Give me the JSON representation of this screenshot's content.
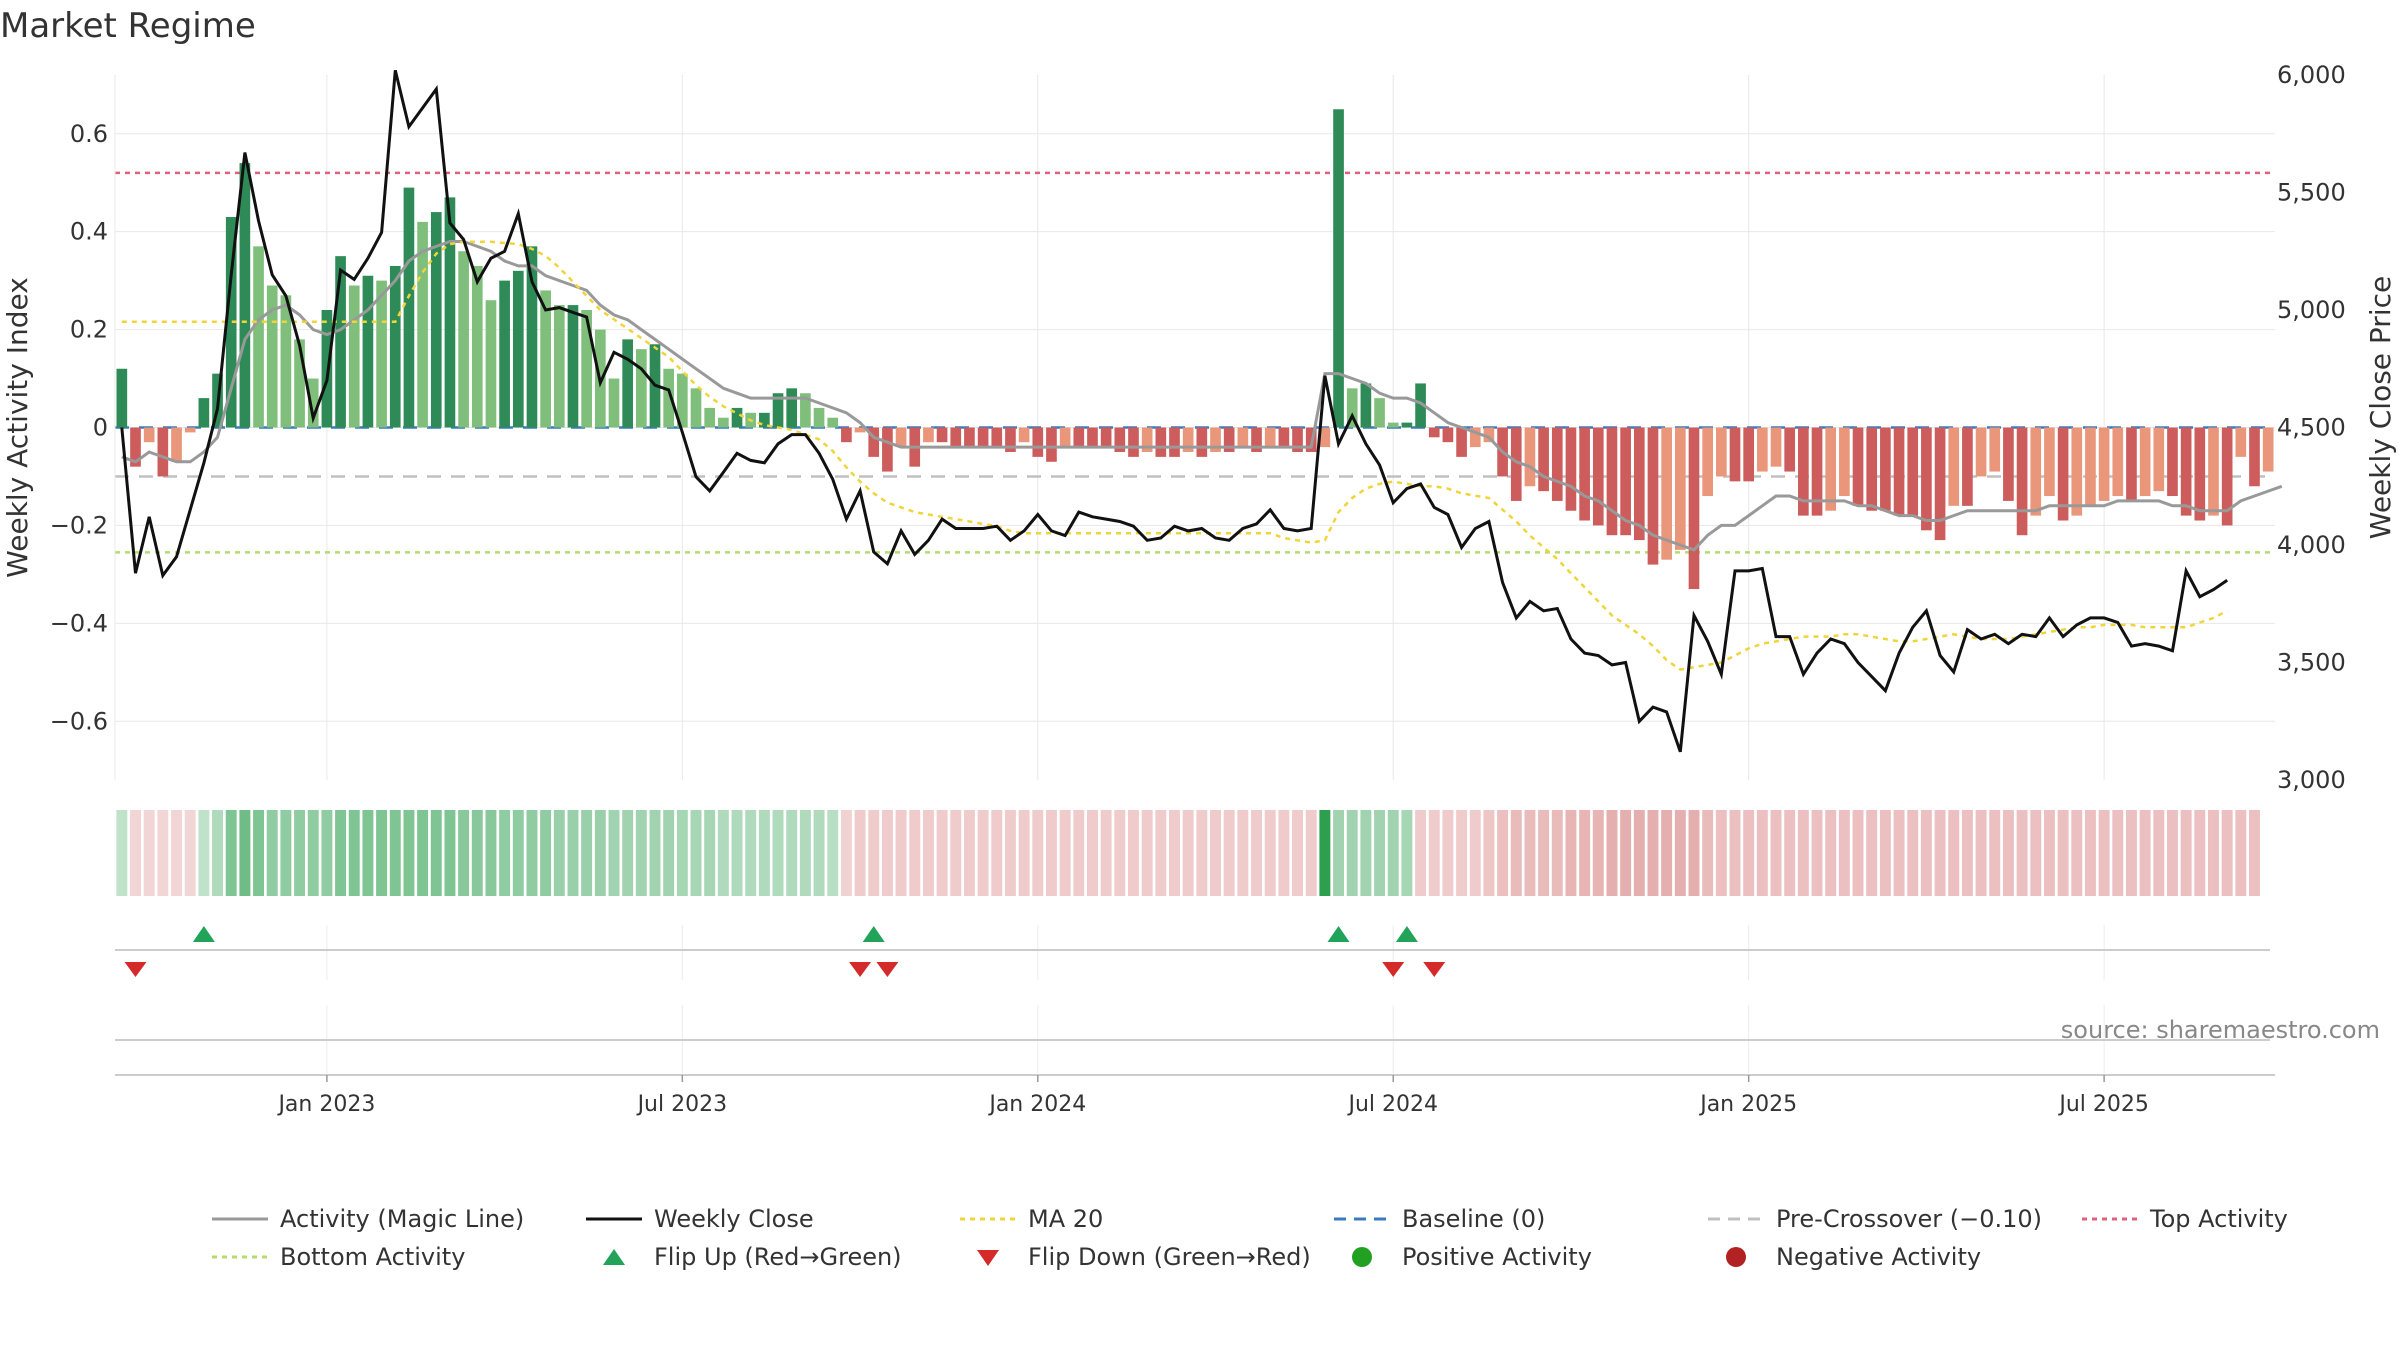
{
  "title": "Market Regime",
  "source": "source: sharemaestro.com",
  "colors": {
    "positive_dark": "#2e8b57",
    "positive_light": "#7fbf7b",
    "negative_dark": "#cd5c5c",
    "negative_light": "#e9967a",
    "magic_line": "#999999",
    "close": "#111111",
    "ma20": "#f0d43a",
    "baseline": "#3a7bbf",
    "pre_crossover": "#c0c0c0",
    "top_activity": "#e0607e",
    "bottom_activity": "#b5dc6e",
    "flip_up": "#22a35a",
    "flip_down": "#d42a2a",
    "positive_dot": "#22a022",
    "negative_dot": "#b22222"
  },
  "chart_data": {
    "type": "bar",
    "x_label": "",
    "y_left": {
      "label": "Weekly Activity Index",
      "range": [
        -0.72,
        0.72
      ],
      "ticks": [
        0.6,
        0.4,
        0.2,
        0,
        -0.2,
        -0.4,
        -0.6
      ],
      "tick_labels": [
        "0.6",
        "0.4",
        "0.2",
        "0",
        "−0.2",
        "−0.4",
        "−0.6"
      ]
    },
    "y_right": {
      "label": "Weekly Close Price",
      "range": [
        3000,
        6000
      ],
      "ticks": [
        6000,
        5500,
        5000,
        4500,
        4000,
        3500,
        3000
      ],
      "tick_labels": [
        "6,000",
        "5,500",
        "5,000",
        "4,500",
        "4,000",
        "3,500",
        "3,000"
      ]
    },
    "x_ticks": [
      {
        "index": 15,
        "label": "Jan 2023"
      },
      {
        "index": 41,
        "label": "Jul 2023"
      },
      {
        "index": 67,
        "label": "Jan 2024"
      },
      {
        "index": 93,
        "label": "Jul 2024"
      },
      {
        "index": 119,
        "label": "Jan 2025"
      },
      {
        "index": 145,
        "label": "Jul 2025"
      }
    ],
    "top_activity_level": 0.52,
    "bottom_activity_level": -0.255,
    "pre_crossover_level": -0.1,
    "baseline_level": 0,
    "activity": [
      0.12,
      -0.08,
      -0.03,
      -0.1,
      -0.07,
      -0.01,
      0.06,
      0.11,
      0.43,
      0.54,
      0.37,
      0.29,
      0.27,
      0.18,
      0.1,
      0.24,
      0.35,
      0.29,
      0.31,
      0.3,
      0.33,
      0.49,
      0.42,
      0.44,
      0.47,
      0.36,
      0.33,
      0.26,
      0.3,
      0.32,
      0.37,
      0.28,
      0.25,
      0.25,
      0.24,
      0.2,
      0.1,
      0.18,
      0.16,
      0.17,
      0.12,
      0.11,
      0.08,
      0.04,
      0.02,
      0.04,
      0.03,
      0.03,
      0.07,
      0.08,
      0.07,
      0.04,
      0.02,
      -0.03,
      -0.01,
      -0.06,
      -0.09,
      -0.04,
      -0.08,
      -0.03,
      -0.03,
      -0.04,
      -0.04,
      -0.04,
      -0.04,
      -0.05,
      -0.03,
      -0.06,
      -0.07,
      -0.04,
      -0.04,
      -0.04,
      -0.04,
      -0.05,
      -0.06,
      -0.05,
      -0.06,
      -0.06,
      -0.05,
      -0.06,
      -0.05,
      -0.05,
      -0.04,
      -0.05,
      -0.04,
      -0.04,
      -0.05,
      -0.05,
      -0.04,
      0.65,
      0.08,
      0.09,
      0.06,
      0.01,
      0.01,
      0.09,
      -0.02,
      -0.03,
      -0.06,
      -0.04,
      -0.03,
      -0.1,
      -0.15,
      -0.12,
      -0.13,
      -0.15,
      -0.17,
      -0.19,
      -0.2,
      -0.22,
      -0.22,
      -0.23,
      -0.28,
      -0.27,
      -0.25,
      -0.33,
      -0.14,
      -0.1,
      -0.11,
      -0.11,
      -0.09,
      -0.08,
      -0.09,
      -0.18,
      -0.18,
      -0.17,
      -0.14,
      -0.16,
      -0.17,
      -0.17,
      -0.18,
      -0.18,
      -0.21,
      -0.23,
      -0.16,
      -0.16,
      -0.1,
      -0.09,
      -0.15,
      -0.22,
      -0.18,
      -0.14,
      -0.19,
      -0.18,
      -0.16,
      -0.15,
      -0.14,
      -0.15,
      -0.14,
      -0.13,
      -0.14,
      -0.18,
      -0.19,
      -0.18,
      -0.2,
      -0.06,
      -0.12,
      -0.09
    ],
    "weekly_close": [
      4500,
      3880,
      4120,
      3870,
      3950,
      4150,
      4350,
      4580,
      5150,
      5670,
      5380,
      5150,
      5060,
      4850,
      4540,
      4700,
      5170,
      5130,
      5220,
      5330,
      6020,
      5780,
      5860,
      5940,
      5370,
      5300,
      5120,
      5220,
      5250,
      5410,
      5120,
      5000,
      5010,
      4990,
      4970,
      4690,
      4820,
      4790,
      4750,
      4680,
      4660,
      4480,
      4290,
      4230,
      4310,
      4390,
      4360,
      4350,
      4430,
      4470,
      4470,
      4390,
      4280,
      4110,
      4230,
      3970,
      3920,
      4060,
      3960,
      4020,
      4110,
      4070,
      4070,
      4070,
      4080,
      4020,
      4060,
      4130,
      4060,
      4040,
      4140,
      4120,
      4110,
      4100,
      4080,
      4020,
      4030,
      4080,
      4060,
      4070,
      4030,
      4020,
      4070,
      4090,
      4150,
      4070,
      4060,
      4070,
      4720,
      4430,
      4550,
      4430,
      4340,
      4180,
      4240,
      4260,
      4160,
      4130,
      3990,
      4070,
      4100,
      3840,
      3690,
      3760,
      3720,
      3730,
      3600,
      3540,
      3530,
      3490,
      3500,
      3250,
      3310,
      3290,
      3120,
      3700,
      3590,
      3450,
      3890,
      3890,
      3900,
      3610,
      3610,
      3450,
      3540,
      3600,
      3580,
      3500,
      3440,
      3380,
      3540,
      3650,
      3720,
      3530,
      3460,
      3640,
      3600,
      3620,
      3580,
      3620,
      3610,
      3690,
      3610,
      3660,
      3690,
      3690,
      3670,
      3570,
      3580,
      3570,
      3550,
      3890,
      3780,
      3810,
      3850
    ],
    "ma20": [
      4950,
      4950,
      4950,
      4950,
      4950,
      4950,
      4950,
      4950,
      4950,
      4950,
      4950,
      4950,
      4950,
      4950,
      4950,
      4950,
      4950,
      4950,
      4950,
      4950,
      4950,
      5060,
      5160,
      5240,
      5280,
      5290,
      5290,
      5290,
      5285,
      5280,
      5260,
      5230,
      5180,
      5120,
      5060,
      5000,
      4960,
      4920,
      4880,
      4840,
      4800,
      4740,
      4680,
      4630,
      4590,
      4560,
      4530,
      4510,
      4500,
      4490,
      4470,
      4450,
      4400,
      4330,
      4270,
      4220,
      4180,
      4160,
      4140,
      4130,
      4120,
      4110,
      4100,
      4090,
      4080,
      4060,
      4050,
      4050,
      4050,
      4050,
      4050,
      4050,
      4050,
      4050,
      4050,
      4050,
      4050,
      4050,
      4050,
      4050,
      4050,
      4050,
      4050,
      4050,
      4050,
      4030,
      4020,
      4010,
      4020,
      4140,
      4200,
      4240,
      4260,
      4270,
      4260,
      4250,
      4250,
      4240,
      4220,
      4210,
      4200,
      4150,
      4100,
      4040,
      3990,
      3940,
      3880,
      3820,
      3760,
      3700,
      3660,
      3620,
      3570,
      3510,
      3470,
      3480,
      3490,
      3500,
      3530,
      3560,
      3580,
      3590,
      3600,
      3610,
      3610,
      3610,
      3620,
      3620,
      3610,
      3600,
      3590,
      3590,
      3600,
      3610,
      3620,
      3610,
      3600,
      3600,
      3600,
      3610,
      3620,
      3630,
      3640,
      3650,
      3650,
      3660,
      3660,
      3660,
      3650,
      3650,
      3650,
      3650,
      3670,
      3690,
      3720
    ],
    "magic_line": [
      -0.06,
      -0.07,
      -0.05,
      -0.06,
      -0.07,
      -0.07,
      -0.05,
      -0.02,
      0.08,
      0.18,
      0.22,
      0.24,
      0.25,
      0.23,
      0.2,
      0.19,
      0.2,
      0.22,
      0.24,
      0.27,
      0.3,
      0.34,
      0.36,
      0.37,
      0.38,
      0.38,
      0.37,
      0.36,
      0.34,
      0.33,
      0.33,
      0.31,
      0.3,
      0.29,
      0.28,
      0.25,
      0.23,
      0.22,
      0.2,
      0.18,
      0.16,
      0.14,
      0.12,
      0.1,
      0.08,
      0.07,
      0.06,
      0.06,
      0.06,
      0.06,
      0.06,
      0.05,
      0.04,
      0.03,
      0.01,
      -0.02,
      -0.03,
      -0.04,
      -0.04,
      -0.04,
      -0.04,
      -0.04,
      -0.04,
      -0.04,
      -0.04,
      -0.04,
      -0.04,
      -0.04,
      -0.04,
      -0.04,
      -0.04,
      -0.04,
      -0.04,
      -0.04,
      -0.04,
      -0.04,
      -0.04,
      -0.04,
      -0.04,
      -0.04,
      -0.04,
      -0.04,
      -0.04,
      -0.04,
      -0.04,
      -0.04,
      -0.04,
      -0.04,
      0.11,
      0.11,
      0.1,
      0.09,
      0.07,
      0.06,
      0.06,
      0.05,
      0.03,
      0.01,
      0,
      -0.01,
      -0.02,
      -0.05,
      -0.07,
      -0.08,
      -0.1,
      -0.11,
      -0.12,
      -0.14,
      -0.15,
      -0.17,
      -0.19,
      -0.2,
      -0.22,
      -0.23,
      -0.24,
      -0.25,
      -0.22,
      -0.2,
      -0.2,
      -0.18,
      -0.16,
      -0.14,
      -0.14,
      -0.15,
      -0.15,
      -0.15,
      -0.15,
      -0.16,
      -0.16,
      -0.17,
      -0.18,
      -0.18,
      -0.19,
      -0.19,
      -0.18,
      -0.17,
      -0.17,
      -0.17,
      -0.17,
      -0.17,
      -0.17,
      -0.16,
      -0.16,
      -0.16,
      -0.16,
      -0.16,
      -0.15,
      -0.15,
      -0.15,
      -0.15,
      -0.16,
      -0.16,
      -0.17,
      -0.17,
      -0.17,
      -0.15,
      -0.14,
      -0.13,
      -0.12
    ],
    "regime_strip": [
      0.1,
      -0.1,
      -0.1,
      -0.1,
      -0.1,
      -0.1,
      0.1,
      0.2,
      0.5,
      0.6,
      0.5,
      0.4,
      0.4,
      0.4,
      0.4,
      0.4,
      0.5,
      0.5,
      0.5,
      0.5,
      0.5,
      0.5,
      0.5,
      0.5,
      0.5,
      0.45,
      0.45,
      0.45,
      0.4,
      0.4,
      0.4,
      0.4,
      0.35,
      0.35,
      0.35,
      0.35,
      0.3,
      0.3,
      0.3,
      0.3,
      0.3,
      0.25,
      0.25,
      0.25,
      0.2,
      0.2,
      0.2,
      0.2,
      0.2,
      0.2,
      0.2,
      0.2,
      0.15,
      -0.15,
      -0.2,
      -0.2,
      -0.2,
      -0.2,
      -0.2,
      -0.2,
      -0.2,
      -0.2,
      -0.2,
      -0.2,
      -0.2,
      -0.2,
      -0.2,
      -0.2,
      -0.2,
      -0.2,
      -0.2,
      -0.2,
      -0.2,
      -0.2,
      -0.2,
      -0.2,
      -0.2,
      -0.2,
      -0.2,
      -0.2,
      -0.2,
      -0.2,
      -0.2,
      -0.2,
      -0.2,
      -0.2,
      -0.2,
      -0.2,
      1.0,
      0.3,
      0.3,
      0.3,
      0.3,
      0.3,
      0.25,
      -0.2,
      -0.2,
      -0.2,
      -0.2,
      -0.2,
      -0.25,
      -0.3,
      -0.35,
      -0.35,
      -0.35,
      -0.35,
      -0.4,
      -0.4,
      -0.4,
      -0.45,
      -0.45,
      -0.45,
      -0.45,
      -0.45,
      -0.45,
      -0.45,
      -0.35,
      -0.3,
      -0.3,
      -0.3,
      -0.3,
      -0.3,
      -0.3,
      -0.3,
      -0.3,
      -0.3,
      -0.3,
      -0.3,
      -0.3,
      -0.3,
      -0.3,
      -0.3,
      -0.3,
      -0.3,
      -0.3,
      -0.3,
      -0.3,
      -0.3,
      -0.3,
      -0.3,
      -0.3,
      -0.3,
      -0.3,
      -0.3,
      -0.3,
      -0.3,
      -0.3,
      -0.3,
      -0.3,
      -0.3,
      -0.3,
      -0.3,
      -0.3,
      -0.3,
      -0.3,
      -0.3,
      -0.3
    ],
    "flip_up_indices": [
      6,
      55,
      89,
      94
    ],
    "flip_down_indices": [
      1,
      54,
      56,
      93,
      96
    ]
  },
  "legend": [
    {
      "id": "magic",
      "label": "Activity (Magic Line)",
      "kind": "line",
      "color_key": "magic_line",
      "dash": ""
    },
    {
      "id": "close",
      "label": "Weekly Close",
      "kind": "line",
      "color_key": "close",
      "dash": ""
    },
    {
      "id": "ma20",
      "label": "MA 20",
      "kind": "line",
      "color_key": "ma20",
      "dash": "5,5"
    },
    {
      "id": "baseline",
      "label": "Baseline (0)",
      "kind": "line",
      "color_key": "baseline",
      "dash": "12,8"
    },
    {
      "id": "pre",
      "label": "Pre-Crossover (−0.10)",
      "kind": "line",
      "color_key": "pre_crossover",
      "dash": "12,8"
    },
    {
      "id": "top",
      "label": "Top Activity",
      "kind": "line",
      "color_key": "top_activity",
      "dash": "5,5"
    },
    {
      "id": "bottom",
      "label": "Bottom Activity",
      "kind": "line",
      "color_key": "bottom_activity",
      "dash": "5,5"
    },
    {
      "id": "flipup",
      "label": "Flip Up (Red→Green)",
      "kind": "triangle-up",
      "color_key": "flip_up",
      "dash": ""
    },
    {
      "id": "flipdown",
      "label": "Flip Down (Green→Red)",
      "kind": "triangle-down",
      "color_key": "flip_down",
      "dash": ""
    },
    {
      "id": "posdot",
      "label": "Positive Activity",
      "kind": "dot",
      "color_key": "positive_dot",
      "dash": ""
    },
    {
      "id": "negdot",
      "label": "Negative Activity",
      "kind": "dot",
      "color_key": "negative_dot",
      "dash": ""
    }
  ]
}
